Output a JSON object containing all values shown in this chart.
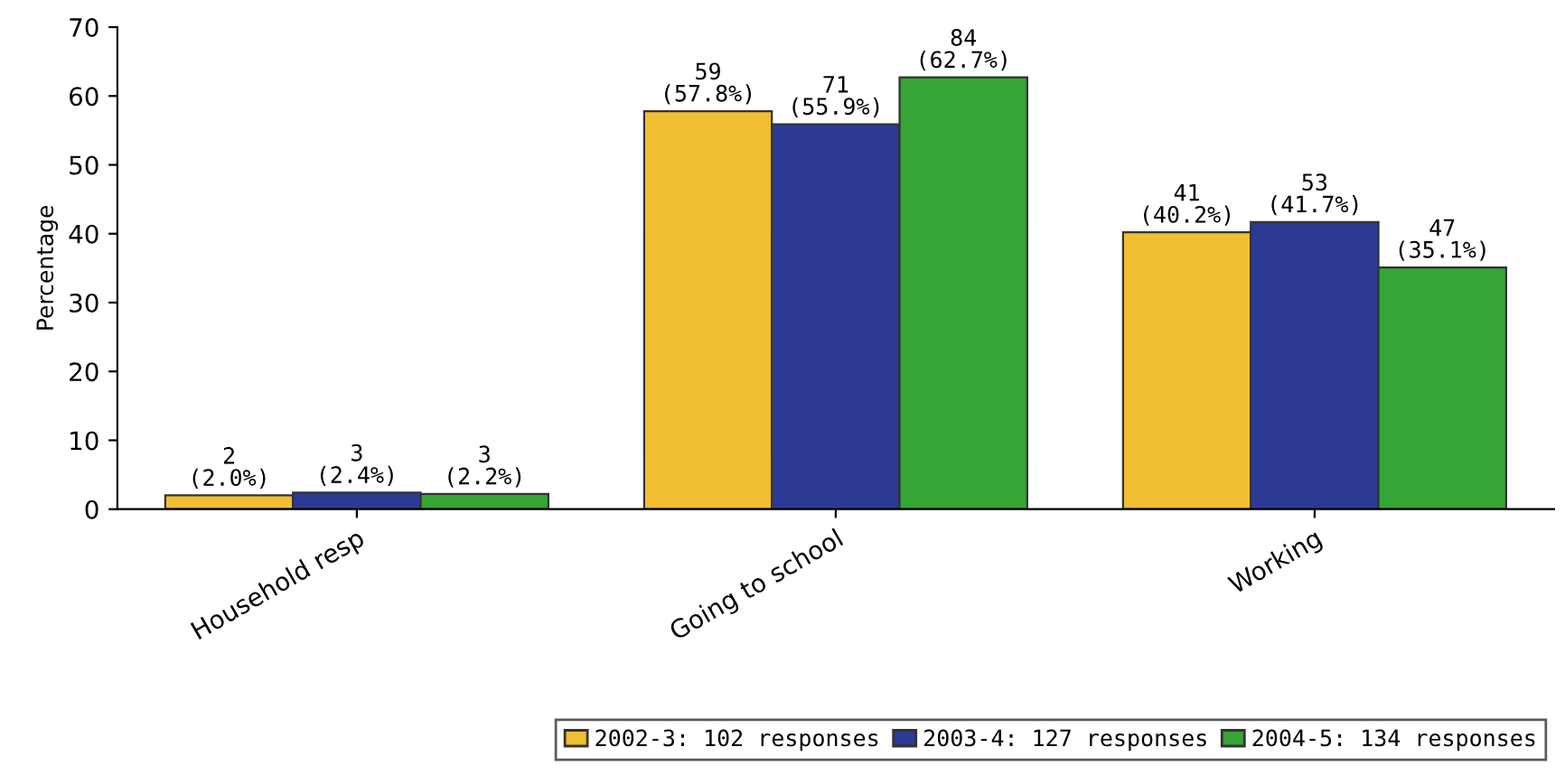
{
  "chart_data": {
    "type": "bar",
    "ylabel": "Percentage",
    "categories": [
      "Household resp",
      "Going to school",
      "Working"
    ],
    "series": [
      {
        "name": "2002-3: 102 responses",
        "color": "#f0be30",
        "values": [
          2.0,
          57.8,
          40.2
        ],
        "value_labels": [
          "2\n(2.0%)",
          "59\n(57.8%)",
          "41\n(40.2%)"
        ]
      },
      {
        "name": "2003-4: 127 responses",
        "color": "#2c3a96",
        "values": [
          2.4,
          55.9,
          41.7
        ],
        "value_labels": [
          "3\n(2.4%)",
          "71\n(55.9%)",
          "53\n(41.7%)"
        ]
      },
      {
        "name": "2004-5: 134 responses",
        "color": "#35a535",
        "values": [
          2.2,
          62.7,
          35.1
        ],
        "value_labels": [
          "3\n(2.2%)",
          "84\n(62.7%)",
          "47\n(35.1%)"
        ]
      }
    ],
    "ylim": [
      0,
      70
    ],
    "yticks": [
      0,
      10,
      20,
      30,
      40,
      50,
      60,
      70
    ],
    "grid": false,
    "legend": "bottom right"
  }
}
